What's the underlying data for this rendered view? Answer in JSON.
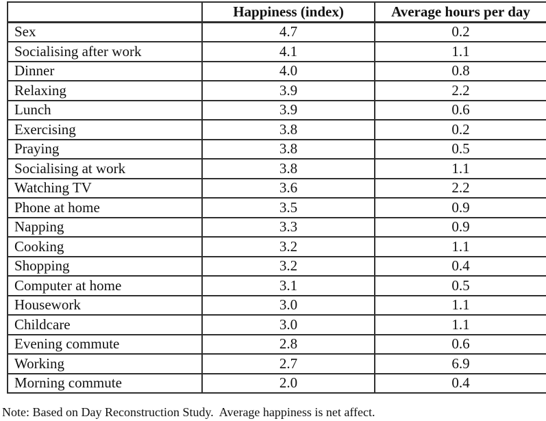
{
  "chart_data": {
    "type": "table",
    "columns": [
      "",
      "Happiness (index)",
      "Average hours per day"
    ],
    "rows": [
      [
        "Sex",
        "4.7",
        "0.2"
      ],
      [
        "Socialising after work",
        "4.1",
        "1.1"
      ],
      [
        "Dinner",
        "4.0",
        "0.8"
      ],
      [
        "Relaxing",
        "3.9",
        "2.2"
      ],
      [
        "Lunch",
        "3.9",
        "0.6"
      ],
      [
        "Exercising",
        "3.8",
        "0.2"
      ],
      [
        "Praying",
        "3.8",
        "0.5"
      ],
      [
        "Socialising at work",
        "3.8",
        "1.1"
      ],
      [
        "Watching TV",
        "3.6",
        "2.2"
      ],
      [
        "Phone at home",
        "3.5",
        "0.9"
      ],
      [
        "Napping",
        "3.3",
        "0.9"
      ],
      [
        "Cooking",
        "3.2",
        "1.1"
      ],
      [
        "Shopping",
        "3.2",
        "0.4"
      ],
      [
        "Computer at home",
        "3.1",
        "0.5"
      ],
      [
        "Housework",
        "3.0",
        "1.1"
      ],
      [
        "Childcare",
        "3.0",
        "1.1"
      ],
      [
        "Evening commute",
        "2.8",
        "0.6"
      ],
      [
        "Working",
        "2.7",
        "6.9"
      ],
      [
        "Morning commute",
        "2.0",
        "0.4"
      ]
    ],
    "title": "",
    "layout_hints": {
      "first_column_align": "left",
      "number_columns_align": "center",
      "grid": "on"
    }
  },
  "note": "Note: Based on Day Reconstruction Study.  Average happiness is net affect.",
  "colors": {
    "border": "#2e2e2e",
    "text": "#111111",
    "background": "#ffffff"
  }
}
